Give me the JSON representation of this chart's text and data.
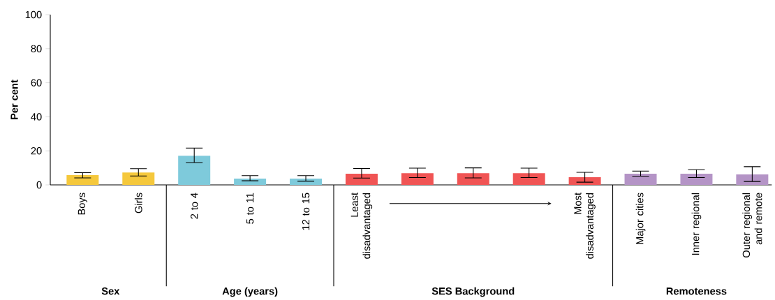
{
  "chart_data": {
    "type": "bar",
    "ylabel": "Per cent",
    "categories": [
      "Boys",
      "Girls",
      "2 to 4",
      "5 to 11",
      "12 to 15",
      "Least disadvantaged",
      null,
      null,
      null,
      "Most disadvantaged",
      "Major cities",
      "Inner regional",
      "Outer regional and remote"
    ],
    "values": [
      5.7,
      7.3,
      17.1,
      3.7,
      3.7,
      6.6,
      6.9,
      6.9,
      6.9,
      4.5,
      6.6,
      6.6,
      6.1
    ],
    "errors": [
      [
        4.1,
        7.2
      ],
      [
        5.2,
        9.5
      ],
      [
        13.1,
        21.6
      ],
      [
        2.4,
        5.4
      ],
      [
        2.2,
        5.4
      ],
      [
        4.0,
        9.6
      ],
      [
        4.3,
        9.8
      ],
      [
        4.1,
        10.0
      ],
      [
        4.3,
        9.8
      ],
      [
        1.6,
        7.4
      ],
      [
        5.1,
        8.1
      ],
      [
        4.3,
        8.9
      ],
      [
        2.0,
        10.7
      ]
    ],
    "colors": [
      "#f5c83c",
      "#f5c83c",
      "#7ecadb",
      "#7ecadb",
      "#7ecadb",
      "#f05454",
      "#f05454",
      "#f05454",
      "#f05454",
      "#f05454",
      "#b494c6",
      "#b494c6",
      "#b494c6"
    ],
    "ylim": [
      0,
      100
    ],
    "yticks": [
      0,
      20,
      40,
      60,
      80,
      100
    ],
    "grid": false,
    "annotations": [
      "Sex",
      "Age (years)",
      "SES Background",
      "Remoteness"
    ]
  }
}
